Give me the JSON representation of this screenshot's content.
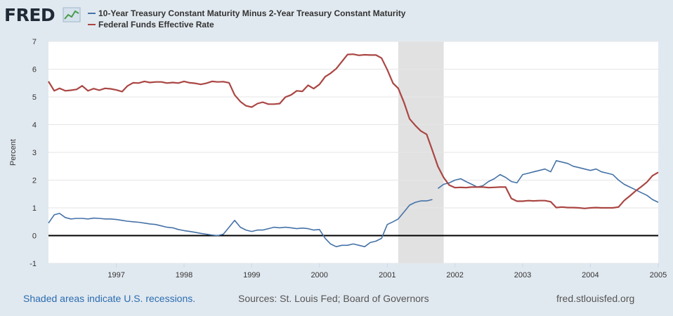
{
  "logo": {
    "text": "FRED"
  },
  "footer": {
    "shaded_note": "Shaded areas indicate U.S. recessions.",
    "sources": "Sources: St. Louis Fed; Board of Governors",
    "url": "fred.stlouisfed.org"
  },
  "colors": {
    "spread": "#4572a7",
    "fedfunds": "#aa4643",
    "recession": "#e1e1e1",
    "zero_line": "#000000"
  },
  "chart_data": {
    "type": "line",
    "ylabel": "Percent",
    "xlim": [
      "1996-01-01",
      "2005-01-01"
    ],
    "ylim": [
      -1,
      7
    ],
    "yticks": [
      -1,
      0,
      1,
      2,
      3,
      4,
      5,
      6,
      7
    ],
    "xticks": [
      "1997",
      "1998",
      "1999",
      "2000",
      "2001",
      "2002",
      "2003",
      "2004",
      "2005"
    ],
    "grid": true,
    "legend_position": "top-left",
    "recessions": [
      [
        "2001-03-01",
        "2001-11-01"
      ]
    ],
    "series": [
      {
        "name": "10-Year Treasury Constant Maturity Minus 2-Year Treasury Constant Maturity",
        "color": "#4572a7",
        "x": [
          "1996-01-01",
          "1996-02-01",
          "1996-03-01",
          "1996-04-01",
          "1996-05-01",
          "1996-06-01",
          "1996-07-01",
          "1996-08-01",
          "1996-09-01",
          "1996-10-01",
          "1996-11-01",
          "1996-12-01",
          "1997-01-01",
          "1997-02-01",
          "1997-03-01",
          "1997-04-01",
          "1997-05-01",
          "1997-06-01",
          "1997-07-01",
          "1997-08-01",
          "1997-09-01",
          "1997-10-01",
          "1997-11-01",
          "1997-12-01",
          "1998-01-01",
          "1998-02-01",
          "1998-03-01",
          "1998-04-01",
          "1998-05-01",
          "1998-06-01",
          "1998-07-01",
          "1998-08-01",
          "1998-09-01",
          "1998-10-01",
          "1998-11-01",
          "1998-12-01",
          "1999-01-01",
          "1999-02-01",
          "1999-03-01",
          "1999-04-01",
          "1999-05-01",
          "1999-06-01",
          "1999-07-01",
          "1999-08-01",
          "1999-09-01",
          "1999-10-01",
          "1999-11-01",
          "1999-12-01",
          "2000-01-01",
          "2000-02-01",
          "2000-03-01",
          "2000-04-01",
          "2000-05-01",
          "2000-06-01",
          "2000-07-01",
          "2000-08-01",
          "2000-09-01",
          "2000-10-01",
          "2000-11-01",
          "2000-12-01",
          "2001-01-01",
          "2001-02-01",
          "2001-03-01",
          "2001-04-01",
          "2001-05-01",
          "2001-06-01",
          "2001-07-01",
          "2001-08-01",
          "2001-09-01",
          "2001-10-01",
          "2001-11-01",
          "2001-12-01",
          "2002-01-01",
          "2002-02-01",
          "2002-03-01",
          "2002-04-01",
          "2002-05-01",
          "2002-06-01",
          "2002-07-01",
          "2002-08-01",
          "2002-09-01",
          "2002-10-01",
          "2002-11-01",
          "2002-12-01",
          "2003-01-01",
          "2003-02-01",
          "2003-03-01",
          "2003-04-01",
          "2003-05-01",
          "2003-06-01",
          "2003-07-01",
          "2003-08-01",
          "2003-09-01",
          "2003-10-01",
          "2003-11-01",
          "2003-12-01",
          "2004-01-01",
          "2004-02-01",
          "2004-03-01",
          "2004-04-01",
          "2004-05-01",
          "2004-06-01",
          "2004-07-01",
          "2004-08-01",
          "2004-09-01",
          "2004-10-01",
          "2004-11-01",
          "2004-12-01",
          "2005-01-01"
        ],
        "values": [
          0.45,
          0.75,
          0.8,
          0.65,
          0.6,
          0.62,
          0.62,
          0.6,
          0.63,
          0.62,
          0.6,
          0.6,
          0.58,
          0.55,
          0.52,
          0.5,
          0.48,
          0.45,
          0.42,
          0.4,
          0.35,
          0.3,
          0.28,
          0.22,
          0.18,
          0.15,
          0.12,
          0.08,
          0.05,
          0.02,
          0.0,
          0.05,
          0.3,
          0.55,
          0.3,
          0.2,
          0.15,
          0.2,
          0.2,
          0.25,
          0.3,
          0.28,
          0.3,
          0.28,
          0.25,
          0.27,
          0.25,
          0.2,
          0.22,
          -0.1,
          -0.3,
          -0.4,
          -0.35,
          -0.35,
          -0.3,
          -0.35,
          -0.4,
          -0.25,
          -0.2,
          -0.1,
          0.4,
          0.5,
          0.6,
          0.85,
          1.1,
          1.2,
          1.25,
          1.25,
          1.3,
          1.7,
          1.85,
          1.9,
          2.0,
          2.05,
          1.95,
          1.85,
          1.75,
          1.8,
          1.95,
          2.05,
          2.2,
          2.1,
          1.95,
          1.9,
          2.2,
          2.25,
          2.3,
          2.35,
          2.4,
          2.3,
          2.7,
          2.65,
          2.6,
          2.5,
          2.45,
          2.4,
          2.35,
          2.4,
          2.3,
          2.25,
          2.2,
          2.0,
          1.85,
          1.75,
          1.65,
          1.55,
          1.45,
          1.3,
          1.2
        ],
        "gaps_after": [
          "2001-09-01"
        ]
      },
      {
        "name": "Federal Funds Effective Rate",
        "color": "#aa4643",
        "x": [
          "1996-01-01",
          "1996-02-01",
          "1996-03-01",
          "1996-04-01",
          "1996-05-01",
          "1996-06-01",
          "1996-07-01",
          "1996-08-01",
          "1996-09-01",
          "1996-10-01",
          "1996-11-01",
          "1996-12-01",
          "1997-01-01",
          "1997-02-01",
          "1997-03-01",
          "1997-04-01",
          "1997-05-01",
          "1997-06-01",
          "1997-07-01",
          "1997-08-01",
          "1997-09-01",
          "1997-10-01",
          "1997-11-01",
          "1997-12-01",
          "1998-01-01",
          "1998-02-01",
          "1998-03-01",
          "1998-04-01",
          "1998-05-01",
          "1998-06-01",
          "1998-07-01",
          "1998-08-01",
          "1998-09-01",
          "1998-10-01",
          "1998-11-01",
          "1998-12-01",
          "1999-01-01",
          "1999-02-01",
          "1999-03-01",
          "1999-04-01",
          "1999-05-01",
          "1999-06-01",
          "1999-07-01",
          "1999-08-01",
          "1999-09-01",
          "1999-10-01",
          "1999-11-01",
          "1999-12-01",
          "2000-01-01",
          "2000-02-01",
          "2000-03-01",
          "2000-04-01",
          "2000-05-01",
          "2000-06-01",
          "2000-07-01",
          "2000-08-01",
          "2000-09-01",
          "2000-10-01",
          "2000-11-01",
          "2000-12-01",
          "2001-01-01",
          "2001-02-01",
          "2001-03-01",
          "2001-04-01",
          "2001-05-01",
          "2001-06-01",
          "2001-07-01",
          "2001-08-01",
          "2001-09-01",
          "2001-10-01",
          "2001-11-01",
          "2001-12-01",
          "2002-01-01",
          "2002-02-01",
          "2002-03-01",
          "2002-04-01",
          "2002-05-01",
          "2002-06-01",
          "2002-07-01",
          "2002-08-01",
          "2002-09-01",
          "2002-10-01",
          "2002-11-01",
          "2002-12-01",
          "2003-01-01",
          "2003-02-01",
          "2003-03-01",
          "2003-04-01",
          "2003-05-01",
          "2003-06-01",
          "2003-07-01",
          "2003-08-01",
          "2003-09-01",
          "2003-10-01",
          "2003-11-01",
          "2003-12-01",
          "2004-01-01",
          "2004-02-01",
          "2004-03-01",
          "2004-04-01",
          "2004-05-01",
          "2004-06-01",
          "2004-07-01",
          "2004-08-01",
          "2004-09-01",
          "2004-10-01",
          "2004-11-01",
          "2004-12-01",
          "2005-01-01"
        ],
        "values": [
          5.56,
          5.22,
          5.31,
          5.22,
          5.24,
          5.27,
          5.4,
          5.22,
          5.3,
          5.24,
          5.31,
          5.29,
          5.25,
          5.19,
          5.39,
          5.51,
          5.5,
          5.56,
          5.52,
          5.54,
          5.54,
          5.5,
          5.52,
          5.5,
          5.56,
          5.51,
          5.49,
          5.45,
          5.49,
          5.56,
          5.54,
          5.55,
          5.51,
          5.07,
          4.83,
          4.68,
          4.63,
          4.76,
          4.81,
          4.74,
          4.74,
          4.76,
          4.99,
          5.07,
          5.22,
          5.2,
          5.42,
          5.3,
          5.45,
          5.73,
          5.85,
          6.02,
          6.27,
          6.53,
          6.54,
          6.5,
          6.52,
          6.51,
          6.51,
          6.4,
          5.98,
          5.49,
          5.31,
          4.8,
          4.21,
          3.97,
          3.77,
          3.65,
          3.07,
          2.49,
          2.09,
          1.82,
          1.73,
          1.74,
          1.73,
          1.75,
          1.75,
          1.75,
          1.73,
          1.74,
          1.75,
          1.75,
          1.34,
          1.24,
          1.24,
          1.26,
          1.25,
          1.26,
          1.26,
          1.22,
          1.01,
          1.03,
          1.01,
          1.01,
          1.0,
          0.98,
          1.0,
          1.01,
          1.0,
          1.0,
          1.0,
          1.03,
          1.26,
          1.43,
          1.61,
          1.76,
          1.93,
          2.16,
          2.28
        ]
      }
    ]
  }
}
